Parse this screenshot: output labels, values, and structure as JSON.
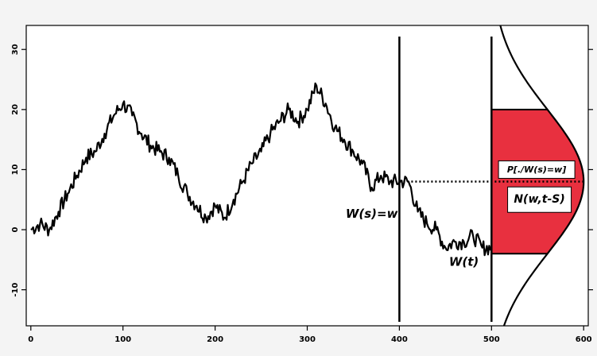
{
  "chart_data": {
    "type": "line",
    "title": "",
    "xlabel": "",
    "ylabel": "",
    "xlim": [
      -5,
      605
    ],
    "ylim": [
      -16,
      34
    ],
    "grid": false,
    "x_ticks": [
      0,
      100,
      200,
      300,
      400,
      500,
      600
    ],
    "x_tick_labels": [
      "0",
      "100",
      "200",
      "300",
      "400",
      "500",
      "600"
    ],
    "y_ticks": [
      -10,
      0,
      10,
      20,
      30
    ],
    "y_tick_labels": [
      "-10",
      "0",
      "10",
      "20",
      "30"
    ],
    "series": [
      {
        "label": "W(t)",
        "color": "#000000",
        "x": [
          0,
          10,
          20,
          30,
          40,
          50,
          60,
          70,
          80,
          90,
          100,
          110,
          120,
          130,
          140,
          150,
          160,
          170,
          180,
          190,
          200,
          210,
          220,
          230,
          240,
          250,
          260,
          270,
          280,
          290,
          300,
          310,
          320,
          330,
          340,
          350,
          360,
          370,
          380,
          390,
          400,
          410,
          420,
          430,
          440,
          450,
          460,
          470,
          480,
          490,
          500
        ],
        "y": [
          0,
          1,
          0,
          3,
          6,
          9,
          12,
          13,
          16,
          19,
          21,
          19,
          16,
          14,
          13,
          12,
          9,
          6,
          4,
          2,
          4,
          2,
          5,
          8,
          11,
          13,
          16,
          18,
          20,
          18,
          20,
          24,
          21,
          17,
          15,
          13,
          11,
          7,
          9,
          8,
          8,
          8,
          3,
          1,
          0,
          -3,
          -2,
          -2,
          -1,
          -3,
          -3
        ]
      }
    ],
    "vertical_lines_x": [
      400,
      500
    ],
    "dotted_line": {
      "x": [
        400,
        600
      ],
      "y": 8
    },
    "density": {
      "mean": 8,
      "sd": 12,
      "shaded_range": [
        -4,
        20
      ],
      "fill_color": "#e8303f",
      "max_width_x": 100
    },
    "annotations": [
      {
        "text": "W(s)=w",
        "x": 370,
        "y": 2
      },
      {
        "text": "W(t)",
        "x": 470,
        "y": -6
      },
      {
        "text": "P[./W(s)=w]",
        "x": 549,
        "y": 10
      },
      {
        "text": "N(w,t-S)",
        "x": 552,
        "y": 5
      }
    ]
  }
}
